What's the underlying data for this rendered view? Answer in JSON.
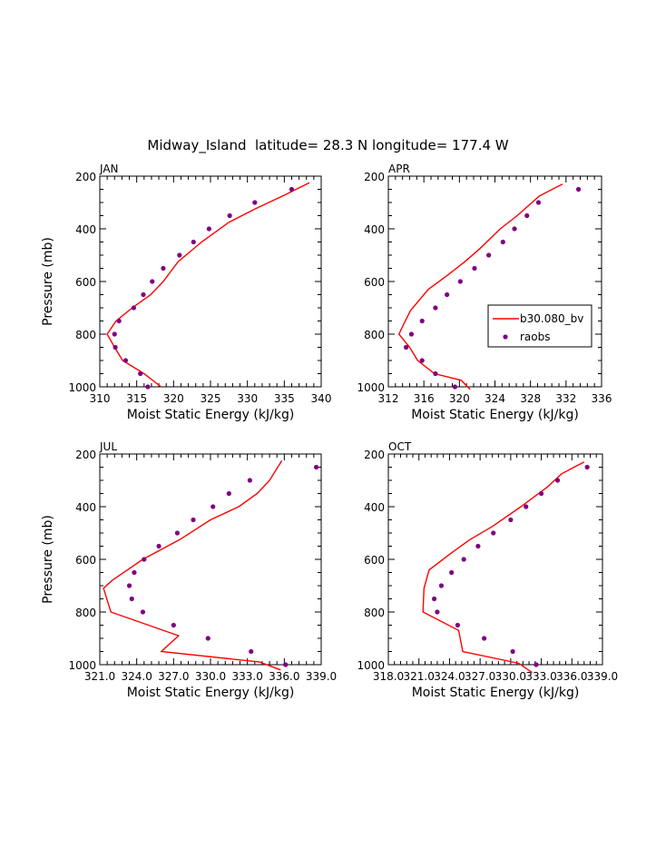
{
  "figure": {
    "title": "Midway_Island  latitude= 28.3 N longitude= 177.4 W"
  },
  "colors": {
    "model": "#ff0000",
    "obs": "#800080",
    "axes": "#000000"
  },
  "legend": {
    "placement": "right-middle of APR panel",
    "entries": [
      "b30.080_bv",
      "raobs"
    ]
  },
  "chart_data": [
    {
      "type": "line",
      "title": "JAN",
      "xlabel": "Moist Static Energy (kJ/kg)",
      "ylabel": "Pressure (mb)",
      "xlim": [
        310,
        340
      ],
      "ylim": [
        1000,
        200
      ],
      "x_ticks": [
        310,
        315,
        320,
        325,
        330,
        335,
        340
      ],
      "x_tick_labels": [
        "310",
        "315",
        "320",
        "325",
        "330",
        "335",
        "340"
      ],
      "y_ticks": [
        200,
        400,
        600,
        800,
        1000
      ],
      "y_tick_labels": [
        "200",
        "400",
        "600",
        "800",
        "1000"
      ],
      "series": [
        {
          "name": "b30.080_bv",
          "kind": "line",
          "x": [
            338.4,
            334.8,
            331.0,
            327.5,
            323.8,
            320.6,
            318.6,
            316.9,
            314.4,
            312.2,
            311.0,
            312.0,
            313.1,
            316.0,
            318.3
          ],
          "y": [
            225,
            275,
            325,
            375,
            450,
            525,
            600,
            650,
            700,
            750,
            800,
            850,
            900,
            950,
            1000
          ]
        },
        {
          "name": "raobs",
          "kind": "scatter",
          "x": [
            336.0,
            331.0,
            327.6,
            324.8,
            322.7,
            320.8,
            318.6,
            317.1,
            315.9,
            314.6,
            312.6,
            312.0,
            312.1,
            313.5,
            315.5,
            316.5
          ],
          "y": [
            250,
            300,
            350,
            400,
            450,
            500,
            550,
            600,
            650,
            700,
            750,
            800,
            850,
            900,
            950,
            1000
          ]
        }
      ]
    },
    {
      "type": "line",
      "title": "APR",
      "xlabel": "Moist Static Energy (kJ/kg)",
      "ylabel": "",
      "xlim": [
        312,
        336
      ],
      "ylim": [
        1000,
        200
      ],
      "x_ticks": [
        312,
        316,
        320,
        324,
        328,
        332,
        336
      ],
      "x_tick_labels": [
        "312",
        "316",
        "320",
        "324",
        "328",
        "332",
        "336"
      ],
      "y_ticks": [
        200,
        400,
        600,
        800,
        1000
      ],
      "y_tick_labels": [
        "200",
        "400",
        "600",
        "800",
        "1000"
      ],
      "series": [
        {
          "name": "b30.080_bv",
          "kind": "line",
          "x": [
            331.6,
            329.0,
            326.5,
            324.6,
            322.3,
            320.6,
            318.7,
            316.5,
            314.5,
            313.9,
            313.2,
            314.4,
            315.3,
            317.2,
            320.2,
            321.2
          ],
          "y": [
            230,
            275,
            350,
            400,
            475,
            525,
            575,
            630,
            710,
            750,
            800,
            850,
            900,
            950,
            975,
            1010
          ]
        },
        {
          "name": "raobs",
          "kind": "scatter",
          "x": [
            333.4,
            328.9,
            327.6,
            326.2,
            324.9,
            323.3,
            321.7,
            320.1,
            318.6,
            317.3,
            315.8,
            314.6,
            314.0,
            315.8,
            317.3,
            319.5
          ],
          "y": [
            250,
            300,
            350,
            400,
            450,
            500,
            550,
            600,
            650,
            700,
            750,
            800,
            850,
            900,
            950,
            1000
          ]
        }
      ]
    },
    {
      "type": "line",
      "title": "JUL",
      "xlabel": "Moist Static Energy (kJ/kg)",
      "ylabel": "Pressure (mb)",
      "xlim": [
        321,
        339
      ],
      "ylim": [
        1000,
        200
      ],
      "x_ticks": [
        321,
        324,
        327,
        330,
        333,
        336,
        339
      ],
      "x_tick_labels": [
        "321.0",
        "324.0",
        "327.0",
        "330.0",
        "333.0",
        "336.0",
        "339.0"
      ],
      "y_ticks": [
        200,
        400,
        600,
        800,
        1000
      ],
      "y_tick_labels": [
        "200",
        "400",
        "600",
        "800",
        "1000"
      ],
      "series": [
        {
          "name": "b30.080_bv",
          "kind": "line",
          "x": [
            335.8,
            334.8,
            333.8,
            332.3,
            330.0,
            327.5,
            324.5,
            322.0,
            321.3,
            321.9,
            327.4,
            326.0,
            334.0,
            335.7
          ],
          "y": [
            225,
            300,
            350,
            400,
            450,
            525,
            600,
            680,
            710,
            800,
            890,
            950,
            990,
            1020
          ]
        },
        {
          "name": "raobs",
          "kind": "scatter",
          "x": [
            338.6,
            333.2,
            331.5,
            330.2,
            328.6,
            327.3,
            325.8,
            324.6,
            323.8,
            323.4,
            323.6,
            324.5,
            327.0,
            329.8,
            333.3,
            336.1
          ],
          "y": [
            250,
            300,
            350,
            400,
            450,
            500,
            550,
            600,
            650,
            700,
            750,
            800,
            850,
            900,
            950,
            1000
          ]
        }
      ]
    },
    {
      "type": "line",
      "title": "OCT",
      "xlabel": "Moist Static Energy (kJ/kg)",
      "ylabel": "",
      "xlim": [
        318,
        339
      ],
      "ylim": [
        1000,
        200
      ],
      "x_ticks": [
        318,
        321,
        324,
        327,
        330,
        333,
        336,
        339
      ],
      "x_tick_labels": [
        "318.0",
        "321.0",
        "324.0",
        "327.0",
        "330.0",
        "333.0",
        "336.0",
        "339.0"
      ],
      "y_ticks": [
        200,
        400,
        600,
        800,
        1000
      ],
      "y_tick_labels": [
        "200",
        "400",
        "600",
        "800",
        "1000"
      ],
      "series": [
        {
          "name": "b30.080_bv",
          "kind": "line",
          "x": [
            337.2,
            335.0,
            333.6,
            331.0,
            328.2,
            326.0,
            324.2,
            322.0,
            321.5,
            321.4,
            324.9,
            325.3,
            330.8,
            332.1
          ],
          "y": [
            230,
            275,
            325,
            400,
            475,
            525,
            575,
            640,
            710,
            800,
            870,
            950,
            995,
            1030
          ]
        },
        {
          "name": "raobs",
          "kind": "scatter",
          "x": [
            337.5,
            334.6,
            333.0,
            331.5,
            330.0,
            328.3,
            326.8,
            325.4,
            324.2,
            323.2,
            322.5,
            322.8,
            324.8,
            327.4,
            330.2,
            332.5
          ],
          "y": [
            250,
            300,
            350,
            400,
            450,
            500,
            550,
            600,
            650,
            700,
            750,
            800,
            850,
            900,
            950,
            1000
          ]
        }
      ]
    }
  ]
}
